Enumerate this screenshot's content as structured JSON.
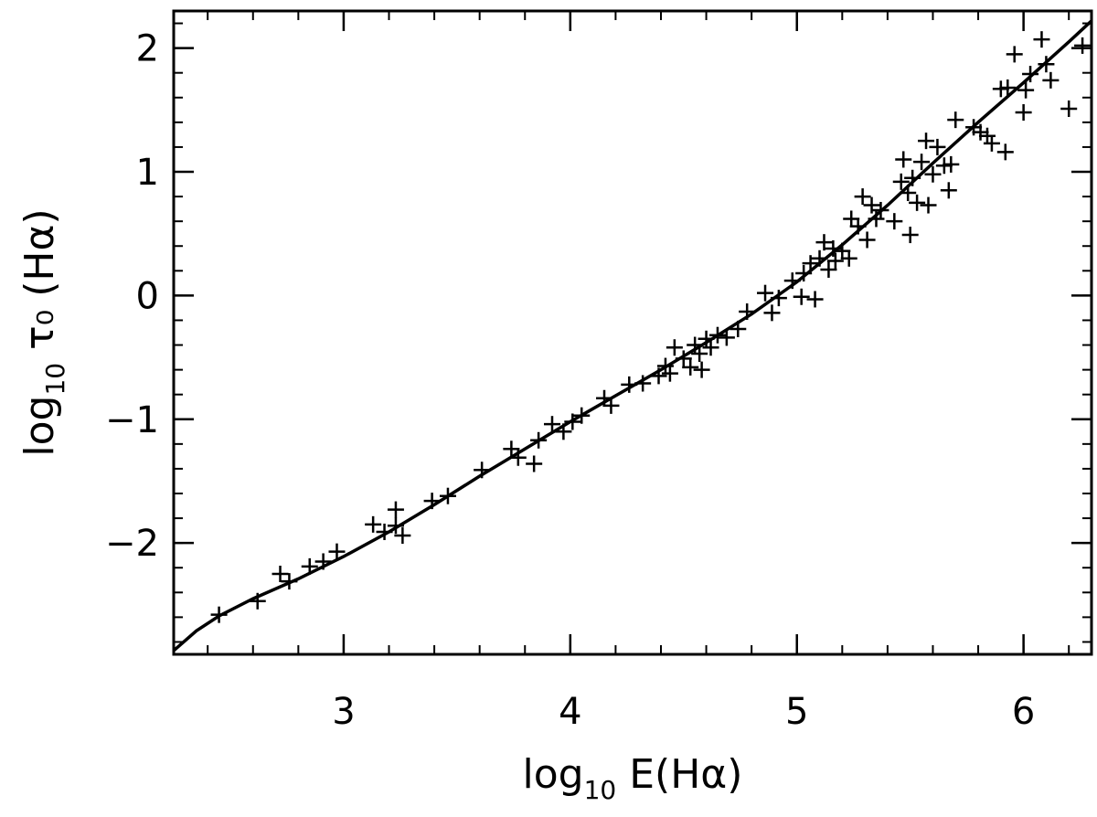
{
  "chart_data": {
    "type": "scatter",
    "xlabel": {
      "main": "log",
      "sub": "10",
      "rest": " E(Hα)"
    },
    "ylabel": {
      "main": "log",
      "sub": "10",
      "rest": " τ₀ (Hα)"
    },
    "xlim": [
      2.25,
      6.3
    ],
    "ylim": [
      -2.9,
      2.3
    ],
    "x_ticks": [
      3,
      4,
      5,
      6
    ],
    "y_ticks": [
      -2,
      -1,
      0,
      1,
      2
    ],
    "x_tick_labels": [
      "3",
      "4",
      "5",
      "6"
    ],
    "y_tick_labels": [
      "−2",
      "−1",
      "0",
      "1",
      "2"
    ],
    "grid": false,
    "series": [
      {
        "marker": "plus",
        "x": [
          2.45,
          2.62,
          2.72,
          2.76,
          2.85,
          2.91,
          2.97,
          3.13,
          3.18,
          3.23,
          3.23,
          3.26,
          3.39,
          3.46,
          3.61,
          3.74,
          3.77,
          3.84,
          3.86,
          3.92,
          3.97,
          4.01,
          4.05,
          4.15,
          4.18,
          4.26,
          4.32,
          4.39,
          4.42,
          4.44,
          4.46,
          4.5,
          4.53,
          4.55,
          4.57,
          4.58,
          4.6,
          4.62,
          4.65,
          4.69,
          4.74,
          4.78,
          4.86,
          4.89,
          4.92,
          4.98,
          5.02,
          5.03,
          5.06,
          5.08,
          5.1,
          5.12,
          5.14,
          5.16,
          5.17,
          5.2,
          5.23,
          5.24,
          5.27,
          5.29,
          5.31,
          5.33,
          5.35,
          5.37,
          5.43,
          5.46,
          5.47,
          5.49,
          5.5,
          5.51,
          5.53,
          5.55,
          5.57,
          5.58,
          5.6,
          5.62,
          5.65,
          5.67,
          5.68,
          5.7,
          5.78,
          5.81,
          5.84,
          5.86,
          5.9,
          5.92,
          5.93,
          5.96,
          6.0,
          6.01,
          6.03,
          6.08,
          6.1,
          6.12,
          6.2,
          6.26
        ],
        "y": [
          -2.58,
          -2.47,
          -2.25,
          -2.31,
          -2.19,
          -2.15,
          -2.07,
          -1.85,
          -1.91,
          -1.73,
          -1.86,
          -1.94,
          -1.66,
          -1.62,
          -1.41,
          -1.24,
          -1.31,
          -1.36,
          -1.17,
          -1.04,
          -1.1,
          -1.02,
          -0.97,
          -0.83,
          -0.89,
          -0.72,
          -0.71,
          -0.65,
          -0.57,
          -0.63,
          -0.42,
          -0.51,
          -0.58,
          -0.4,
          -0.47,
          -0.6,
          -0.35,
          -0.42,
          -0.32,
          -0.34,
          -0.27,
          -0.13,
          0.02,
          -0.14,
          -0.02,
          0.12,
          -0.01,
          0.18,
          0.26,
          -0.03,
          0.3,
          0.43,
          0.21,
          0.38,
          0.28,
          0.36,
          0.3,
          0.62,
          0.56,
          0.8,
          0.45,
          0.73,
          0.62,
          0.69,
          0.6,
          0.92,
          1.1,
          0.83,
          0.49,
          0.95,
          0.75,
          1.08,
          1.25,
          0.73,
          0.98,
          1.2,
          1.05,
          0.85,
          1.06,
          1.42,
          1.36,
          1.32,
          1.29,
          1.23,
          1.67,
          1.16,
          1.68,
          1.95,
          1.48,
          1.66,
          1.79,
          2.07,
          1.87,
          1.74,
          1.51,
          2.02
        ]
      },
      {
        "marker": "line",
        "x": [
          2.25,
          2.35,
          2.45,
          2.6,
          2.8,
          3.0,
          3.2,
          3.4,
          3.6,
          3.8,
          4.0,
          4.2,
          4.4,
          4.6,
          4.8,
          5.0,
          5.2,
          5.4,
          5.6,
          5.8,
          6.0,
          6.2,
          6.3
        ],
        "y": [
          -2.87,
          -2.71,
          -2.59,
          -2.45,
          -2.29,
          -2.11,
          -1.91,
          -1.69,
          -1.46,
          -1.24,
          -1.02,
          -0.81,
          -0.6,
          -0.38,
          -0.15,
          0.11,
          0.41,
          0.73,
          1.07,
          1.4,
          1.72,
          2.05,
          2.22
        ]
      }
    ]
  }
}
